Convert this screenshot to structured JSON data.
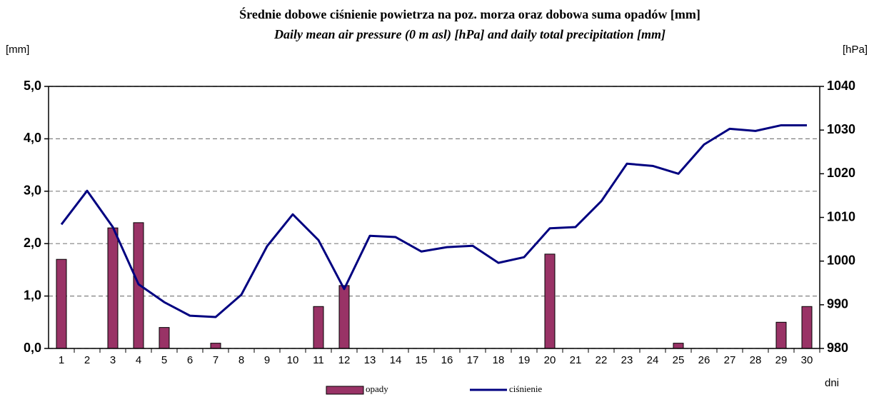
{
  "chart_data": {
    "type": "combo",
    "title": "Średnie dobowe ciśnienie powietrza na poz. morza  oraz dobowa suma opadów [mm]",
    "subtitle": "Daily mean air pressure (0 m asl) [hPa] and daily total precipitation [mm]",
    "y_label": "[mm]",
    "y2_label": "[hPa]",
    "x_label": "dni",
    "categories": [
      "1",
      "2",
      "3",
      "4",
      "5",
      "6",
      "7",
      "8",
      "9",
      "10",
      "11",
      "12",
      "13",
      "14",
      "15",
      "16",
      "17",
      "18",
      "19",
      "20",
      "21",
      "22",
      "23",
      "24",
      "25",
      "26",
      "27",
      "28",
      "29",
      "30"
    ],
    "series": [
      {
        "name": "opady",
        "type": "bar",
        "color": "#993366",
        "values": [
          1.7,
          0,
          2.3,
          2.4,
          0.4,
          0,
          0.1,
          0,
          0,
          0,
          0.8,
          1.2,
          0,
          0,
          0,
          0,
          0,
          0,
          0,
          1.8,
          0,
          0,
          0,
          0,
          0.1,
          0,
          0,
          0,
          0.5,
          0.8
        ]
      },
      {
        "name": "ciśnienie",
        "type": "line",
        "axis": "y2",
        "color": "#000080",
        "values": [
          1008.4,
          1016.1,
          1007.8,
          994.7,
          990.6,
          987.5,
          987.2,
          992.3,
          1003.4,
          1010.7,
          1004.8,
          993.6,
          1005.8,
          1005.5,
          1002.2,
          1003.2,
          1003.5,
          999.6,
          1000.9,
          1007.5,
          1007.8,
          1013.7,
          1022.3,
          1021.8,
          1020.0,
          1026.7,
          1030.3,
          1029.8,
          1031.1,
          1031.1
        ]
      }
    ],
    "ylim": [
      0,
      5
    ],
    "yticks": [
      {
        "value": 0,
        "label": "0,0"
      },
      {
        "value": 1,
        "label": "1,0"
      },
      {
        "value": 2,
        "label": "2,0"
      },
      {
        "value": 3,
        "label": "3,0"
      },
      {
        "value": 4,
        "label": "4,0"
      },
      {
        "value": 5,
        "label": "5,0"
      }
    ],
    "y2lim": [
      980,
      1040
    ],
    "y2ticks": [
      980,
      990,
      1000,
      1010,
      1020,
      1030,
      1040
    ],
    "grid": true,
    "legend": "bottom"
  }
}
